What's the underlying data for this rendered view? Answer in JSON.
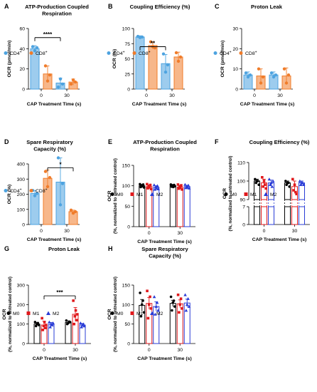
{
  "colors": {
    "cd4": "#4da3e0",
    "cd8": "#f07c2a",
    "m0": "#000000",
    "m1": "#e0191c",
    "m2": "#2a3cd6"
  },
  "chart_data": [
    {
      "type": "bar",
      "panel": "A",
      "title_lines": [
        "ATP-Production Coupled",
        "Respiration"
      ],
      "ylabel": "OCR (pmol/min)",
      "xlabel": "CAP Treatment Time (s)",
      "categories": [
        "0",
        "30"
      ],
      "ylim": [
        0,
        60
      ],
      "yticks": [
        0,
        20,
        40,
        60
      ],
      "series": [
        {
          "name": "CD4+",
          "color_key": "cd4",
          "marker": "circle",
          "values": [
            40,
            6
          ],
          "errors": [
            3,
            5
          ],
          "points": [
            [
              42,
              38,
              41
            ],
            [
              2,
              10,
              5
            ]
          ]
        },
        {
          "name": "CD8+",
          "color_key": "cd8",
          "marker": "circle",
          "values": [
            15,
            7
          ],
          "errors": [
            8,
            3
          ],
          "points": [
            [
              23,
              8,
              14
            ],
            [
              5,
              9,
              7
            ]
          ]
        }
      ],
      "legend_sups": [
        "+",
        "+"
      ],
      "annotations": [
        {
          "text": "****",
          "from": [
            0,
            0
          ],
          "to": [
            1,
            0
          ],
          "y": 51
        }
      ]
    },
    {
      "type": "bar",
      "panel": "B",
      "title_lines": [
        "Coupling Efficiency (%)"
      ],
      "ylabel": "OCR (%)",
      "xlabel": "CAP Treatment Time (s)",
      "categories": [
        "0",
        "30"
      ],
      "ylim": [
        0,
        100
      ],
      "yticks": [
        0,
        25,
        50,
        75,
        100
      ],
      "series": [
        {
          "name": "CD4+",
          "color_key": "cd4",
          "marker": "circle",
          "values": [
            86,
            42
          ],
          "errors": [
            2,
            15
          ],
          "points": [
            [
              87,
              85,
              86
            ],
            [
              58,
              28,
              40
            ]
          ]
        },
        {
          "name": "CD8+",
          "color_key": "cd8",
          "marker": "circle",
          "values": [
            72,
            53
          ],
          "errors": [
            6,
            8
          ],
          "points": [
            [
              78,
              70,
              68
            ],
            [
              60,
              46,
              53
            ]
          ]
        }
      ],
      "legend_sups": [
        "+",
        "+"
      ],
      "annotations": [
        {
          "text": "**",
          "from": [
            0,
            0
          ],
          "to": [
            1,
            0
          ],
          "y": 70
        }
      ]
    },
    {
      "type": "bar",
      "panel": "C",
      "title_lines": [
        "Proton Leak"
      ],
      "ylabel": "OCR (pmol/min)",
      "xlabel": "CAP Treatment Time (s)",
      "categories": [
        "0",
        "30"
      ],
      "ylim": [
        0,
        30
      ],
      "yticks": [
        0,
        10,
        20,
        30
      ],
      "series": [
        {
          "name": "CD4+",
          "color_key": "cd4",
          "marker": "circle",
          "values": [
            7,
            7
          ],
          "errors": [
            1.5,
            1.5
          ],
          "points": [
            [
              8,
              6,
              7
            ],
            [
              8,
              6,
              7
            ]
          ]
        },
        {
          "name": "CD8+",
          "color_key": "cd8",
          "marker": "circle",
          "values": [
            6.5,
            6.5
          ],
          "errors": [
            3.5,
            4
          ],
          "points": [
            [
              10,
              3,
              6
            ],
            [
              10,
              3,
              7
            ]
          ]
        }
      ],
      "legend_sups": [
        "+",
        "+"
      ],
      "annotations": []
    },
    {
      "type": "bar",
      "panel": "D",
      "title_lines": [
        "Spare Respiratory",
        "Capacity (%)"
      ],
      "ylabel": "OCR (%)",
      "xlabel": "CAP Treatment Time (s)",
      "categories": [
        "0",
        "30"
      ],
      "ylim": [
        0,
        400
      ],
      "yticks": [
        0,
        100,
        200,
        300,
        400
      ],
      "series": [
        {
          "name": "CD4+",
          "color_key": "cd4",
          "marker": "circle",
          "values": [
            205,
            280
          ],
          "errors": [
            20,
            160
          ],
          "points": [
            [
              225,
              190,
              205
            ],
            [
              440,
              130,
              270
            ]
          ]
        },
        {
          "name": "CD8+",
          "color_key": "cd8",
          "marker": "circle",
          "values": [
            305,
            85
          ],
          "errors": [
            55,
            10
          ],
          "points": [
            [
              350,
              250,
              310
            ],
            [
              95,
              75,
              85
            ]
          ]
        }
      ],
      "legend_sups": [
        "+",
        "+"
      ],
      "annotations": [
        {
          "text": "*",
          "from": [
            0,
            1
          ],
          "to": [
            1,
            1
          ],
          "y": 375
        }
      ]
    },
    {
      "type": "bar",
      "panel": "E",
      "title_lines": [
        "ATP-Production Coupled",
        "Respiration"
      ],
      "ylabel_lines": [
        "OCR",
        "(%, normalized to untreated control)"
      ],
      "xlabel": "CAP Treatment Time (s)",
      "categories": [
        "0",
        "30"
      ],
      "ylim": [
        0,
        150
      ],
      "yticks": [
        0,
        50,
        100,
        150
      ],
      "series": [
        {
          "name": "M0",
          "color_key": "m0",
          "marker": "circle",
          "values": [
            100,
            100
          ],
          "errors": [
            3,
            3
          ],
          "points": [
            [
              104,
              97,
              101,
              99,
              103,
              96
            ],
            [
              103,
              98,
              101,
              97,
              102,
              99
            ]
          ]
        },
        {
          "name": "M1",
          "color_key": "m1",
          "marker": "square",
          "values": [
            98,
            97
          ],
          "errors": [
            4,
            4
          ],
          "points": [
            [
              104,
              94,
              99,
              96,
              102,
              92
            ],
            [
              103,
              93,
              98,
              95,
              101,
              91
            ]
          ]
        },
        {
          "name": "M2",
          "color_key": "m2",
          "marker": "triangle",
          "values": [
            96,
            98
          ],
          "errors": [
            4,
            3
          ],
          "points": [
            [
              102,
              91,
              97,
              94,
              100,
              92
            ],
            [
              103,
              95,
              99,
              96,
              101,
              94
            ]
          ]
        }
      ],
      "annotations": []
    },
    {
      "type": "bar",
      "panel": "F",
      "title_lines": [
        "Coupling Efficiency (%)"
      ],
      "ylabel_lines": [
        "OCR",
        "(%, normalized to untreated control)"
      ],
      "xlabel": "CAP Treatment Time (s)",
      "categories": [
        "0",
        "30"
      ],
      "axis_break": true,
      "upper_ylim": [
        90,
        110
      ],
      "upper_yticks": [
        90,
        100,
        110
      ],
      "lower_ylim": [
        0,
        7
      ],
      "lower_yticks": [
        0,
        7
      ],
      "series": [
        {
          "name": "M0",
          "color_key": "m0",
          "marker": "circle",
          "values": [
            100,
            99
          ],
          "errors": [
            1,
            1
          ],
          "points": [
            [
              101,
              99,
              100,
              100,
              98
            ],
            [
              100,
              98,
              99,
              99,
              97
            ]
          ]
        },
        {
          "name": "M1",
          "color_key": "m1",
          "marker": "square",
          "values": [
            99,
            97
          ],
          "errors": [
            2,
            3
          ],
          "points": [
            [
              102,
              97,
              100,
              98,
              96
            ],
            [
              101,
              95,
              98,
              94,
              93
            ]
          ]
        },
        {
          "name": "M2",
          "color_key": "m2",
          "marker": "triangle",
          "values": [
            99,
            99
          ],
          "errors": [
            1.5,
            1
          ],
          "points": [
            [
              101,
              98,
              99,
              97,
              100
            ],
            [
              100,
              98,
              99,
              99,
              98
            ]
          ]
        }
      ],
      "annotations": []
    },
    {
      "type": "bar",
      "panel": "G",
      "title_lines": [
        "Proton Leak"
      ],
      "ylabel_lines": [
        "OCR",
        "(%, normalized to untreated control)"
      ],
      "xlabel": "CAP Treatment Time (s)",
      "categories": [
        "0",
        "30"
      ],
      "ylim": [
        0,
        300
      ],
      "yticks": [
        0,
        100,
        200,
        300
      ],
      "series": [
        {
          "name": "M0",
          "color_key": "m0",
          "marker": "circle",
          "values": [
            100,
            108
          ],
          "errors": [
            8,
            8
          ],
          "points": [
            [
              110,
              90,
              100,
              105,
              95
            ],
            [
              118,
              100,
              105,
              112,
              110
            ]
          ]
        },
        {
          "name": "M1",
          "color_key": "m1",
          "marker": "square",
          "values": [
            95,
            150
          ],
          "errors": [
            20,
            35
          ],
          "points": [
            [
              130,
              70,
              90,
              110,
              80,
              95
            ],
            [
              220,
              100,
              140,
              170,
              120,
              150
            ]
          ]
        },
        {
          "name": "M2",
          "color_key": "m2",
          "marker": "triangle",
          "values": [
            98,
            95
          ],
          "errors": [
            10,
            8
          ],
          "points": [
            [
              110,
              85,
              100,
              95,
              105
            ],
            [
              105,
              85,
              95,
              100,
              90
            ]
          ]
        }
      ],
      "annotations": [
        {
          "text": "***",
          "from": [
            0,
            1
          ],
          "to": [
            1,
            1
          ],
          "y": 245
        }
      ]
    },
    {
      "type": "bar",
      "panel": "H",
      "title_lines": [
        "Spare Respiratory",
        "Capacity (%)"
      ],
      "ylabel_lines": [
        "OCR",
        "(%, normalized to untreated control)"
      ],
      "xlabel": "CAP Treatment Time (s)",
      "categories": [
        "0",
        "30"
      ],
      "ylim": [
        0,
        150
      ],
      "yticks": [
        0,
        50,
        100,
        150
      ],
      "series": [
        {
          "name": "M0",
          "color_key": "m0",
          "marker": "circle",
          "values": [
            98,
            103
          ],
          "errors": [
            15,
            8
          ],
          "points": [
            [
              130,
              70,
              100,
              110,
              80
            ],
            [
              120,
              85,
              105,
              110,
              95
            ]
          ]
        },
        {
          "name": "M1",
          "color_key": "m1",
          "marker": "square",
          "values": [
            103,
            102
          ],
          "errors": [
            15,
            10
          ],
          "points": [
            [
              135,
              65,
              100,
              120,
              90
            ],
            [
              125,
              80,
              100,
              115,
              90
            ]
          ]
        },
        {
          "name": "M2",
          "color_key": "m2",
          "marker": "triangle",
          "values": [
            95,
            104
          ],
          "errors": [
            12,
            10
          ],
          "points": [
            [
              120,
              75,
              95,
              105,
              85
            ],
            [
              125,
              85,
              100,
              115,
              95
            ]
          ]
        }
      ],
      "annotations": []
    }
  ]
}
